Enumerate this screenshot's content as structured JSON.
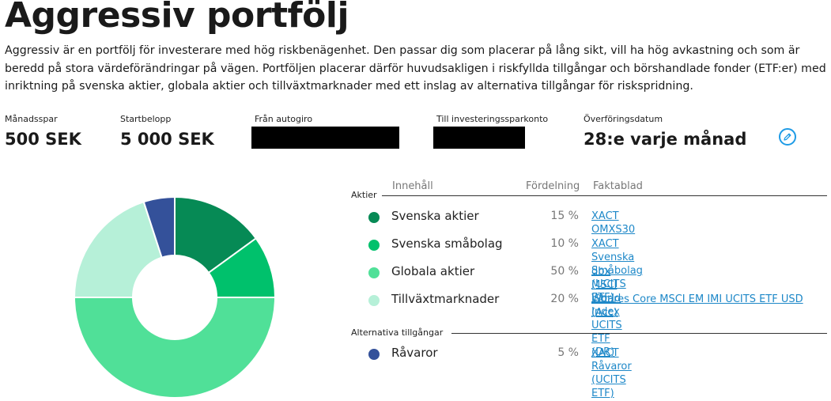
{
  "title": "Aggressiv portfölj",
  "description": "Aggressiv är en portfölj för investerare med hög riskbenägenhet. Den passar dig som placerar på lång sikt, vill ha hög avkastning och som är beredd på stora värdeförändringar på vägen. Portföljen placerar därför huvudsakligen i riskfyllda tillgångar och börshandlade fonder (ETF:er) med inriktning på svenska aktier, globala aktier och tillväxtmarknader med ett inslag av alternativa tillgångar för riskspridning.",
  "summary": {
    "monthly": {
      "label": "Månadsspar",
      "value": "500 SEK"
    },
    "start": {
      "label": "Startbelopp",
      "value": "5 000 SEK"
    },
    "from_autogiro": {
      "label": "Från autogiro"
    },
    "to_isk": {
      "label": "Till investeringssparkonto"
    },
    "transfer_date": {
      "label": "Överföringsdatum",
      "value": "28:e varje månad"
    }
  },
  "edit_icon": "pencil-icon",
  "table": {
    "headers": {
      "content": "Innehåll",
      "allocation": "Fördelning",
      "factsheet": "Faktablad"
    },
    "groups": [
      {
        "label": "Aktier",
        "rows": [
          {
            "name": "Svenska aktier",
            "pct": "15 %",
            "value": 15,
            "color": "#068a55",
            "fund": "XACT OMXS30"
          },
          {
            "name": "Svenska småbolag",
            "pct": "10 %",
            "value": 10,
            "color": "#00c16c",
            "fund": "XACT Svenska Småbolag (UCITS ETF)"
          },
          {
            "name": "Globala aktier",
            "pct": "50 %",
            "value": 50,
            "color": "#50e098",
            "fund": "dbx MSCI World Index UCITS ETF (DR)"
          },
          {
            "name": "Tillväxtmarknader",
            "pct": "20 %",
            "value": 20,
            "color": "#b6f0d8",
            "fund": "iShares Core MSCI EM IMI UCITS ETF USD (Acc)"
          }
        ]
      },
      {
        "label": "Alternativa tillgångar",
        "rows": [
          {
            "name": "Råvaror",
            "pct": "5 %",
            "value": 5,
            "color": "#34519a",
            "fund": "XACT Råvaror (UCITS ETF)"
          }
        ]
      }
    ]
  }
}
